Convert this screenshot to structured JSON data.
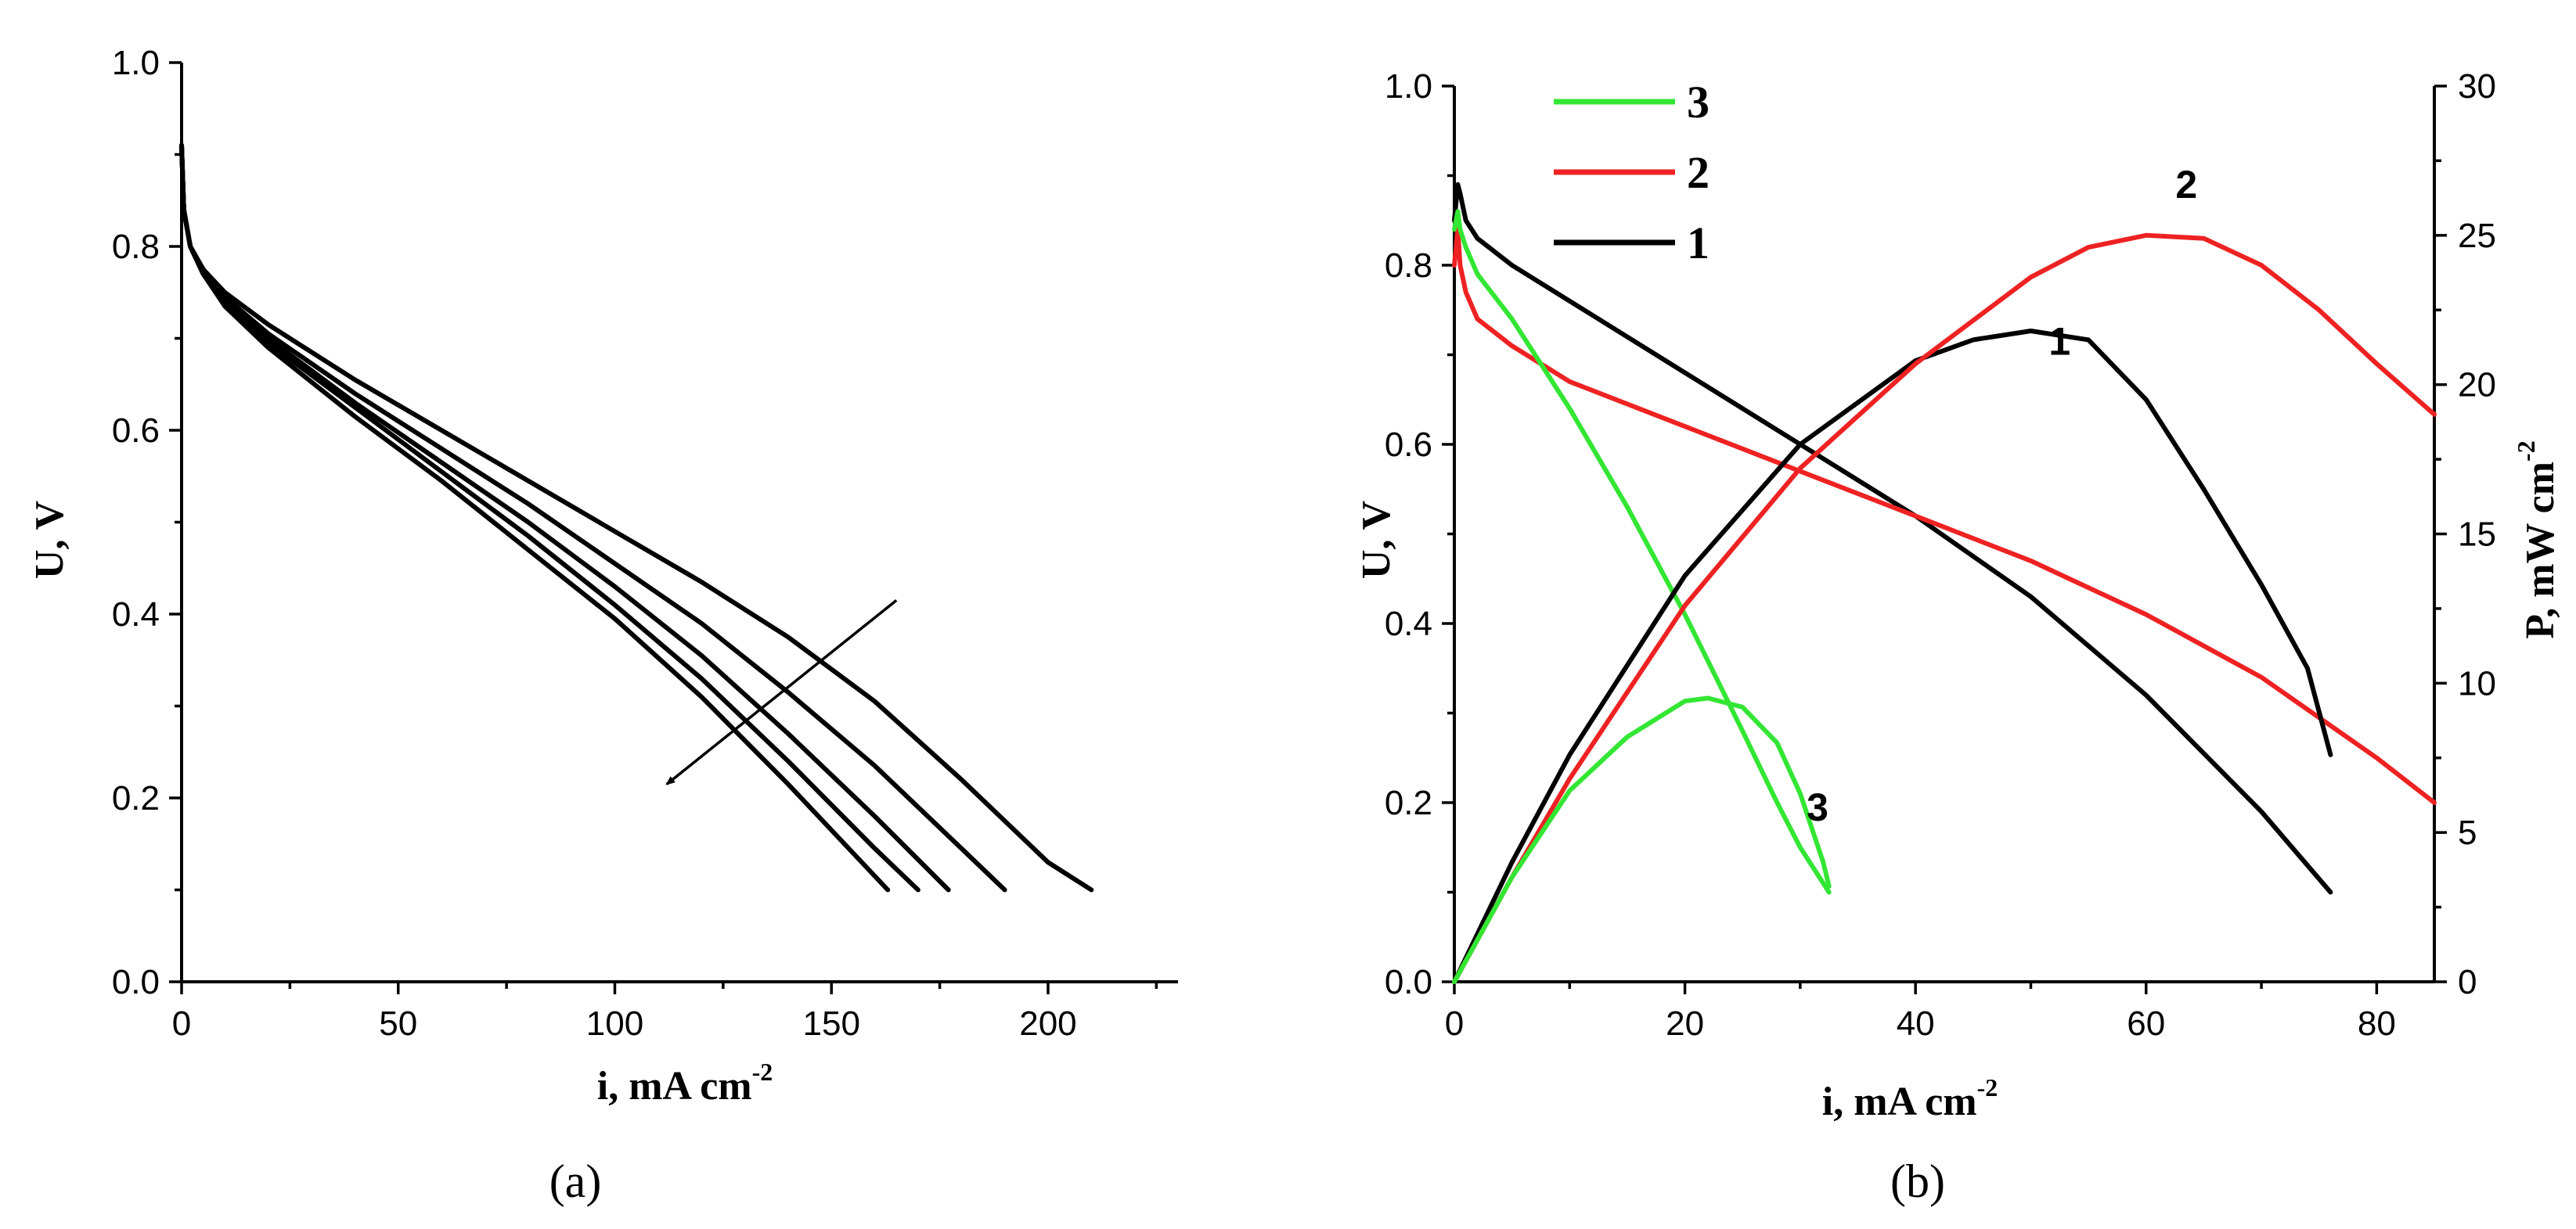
{
  "chart_data": [
    {
      "id": "a",
      "type": "line",
      "caption": "(a)",
      "xlabel": "i, mA cm",
      "xlabel_sup": "-2",
      "ylabel": "U, V",
      "xlim": [
        0,
        230
      ],
      "ylim": [
        0,
        1.0
      ],
      "xticks": [
        "0",
        "50",
        "100",
        "150",
        "200"
      ],
      "xtick_values": [
        0,
        50,
        100,
        150,
        200
      ],
      "xminor_values": [
        25,
        75,
        125,
        175,
        225
      ],
      "yticks": [
        "0.0",
        "0.2",
        "0.4",
        "0.6",
        "0.8",
        "1.0"
      ],
      "ytick_values": [
        0,
        0.2,
        0.4,
        0.6,
        0.8,
        1.0
      ],
      "yminor_values": [
        0.1,
        0.3,
        0.5,
        0.7,
        0.9
      ],
      "color": "#000000",
      "series": [
        {
          "name": "curve-1",
          "x": [
            0,
            0.5,
            2,
            5,
            10,
            20,
            40,
            60,
            80,
            100,
            120,
            140,
            160,
            180,
            200,
            210
          ],
          "y": [
            0.91,
            0.84,
            0.8,
            0.775,
            0.75,
            0.715,
            0.655,
            0.6,
            0.545,
            0.49,
            0.435,
            0.375,
            0.305,
            0.22,
            0.13,
            0.1
          ]
        },
        {
          "name": "curve-2",
          "x": [
            0,
            0.5,
            2,
            5,
            10,
            20,
            40,
            60,
            80,
            100,
            120,
            140,
            160,
            180,
            190
          ],
          "y": [
            0.91,
            0.84,
            0.8,
            0.775,
            0.745,
            0.705,
            0.64,
            0.58,
            0.52,
            0.455,
            0.39,
            0.315,
            0.235,
            0.145,
            0.1
          ]
        },
        {
          "name": "curve-3",
          "x": [
            0,
            0.5,
            2,
            5,
            10,
            20,
            40,
            60,
            80,
            100,
            120,
            140,
            160,
            177
          ],
          "y": [
            0.91,
            0.84,
            0.8,
            0.77,
            0.74,
            0.7,
            0.63,
            0.565,
            0.5,
            0.43,
            0.355,
            0.27,
            0.18,
            0.1
          ]
        },
        {
          "name": "curve-4",
          "x": [
            0,
            0.5,
            2,
            5,
            10,
            20,
            40,
            60,
            80,
            100,
            120,
            140,
            160,
            170
          ],
          "y": [
            0.91,
            0.84,
            0.8,
            0.77,
            0.74,
            0.695,
            0.625,
            0.555,
            0.485,
            0.41,
            0.33,
            0.24,
            0.145,
            0.1
          ]
        },
        {
          "name": "curve-5",
          "x": [
            0,
            0.5,
            2,
            5,
            10,
            20,
            40,
            60,
            80,
            100,
            120,
            140,
            163
          ],
          "y": [
            0.91,
            0.84,
            0.8,
            0.77,
            0.735,
            0.69,
            0.615,
            0.545,
            0.47,
            0.395,
            0.31,
            0.215,
            0.1
          ]
        }
      ],
      "arrow": {
        "from": [
          165,
          0.415
        ],
        "to": [
          112,
          0.215
        ]
      }
    },
    {
      "id": "b",
      "type": "line",
      "caption": "(b)",
      "xlabel": "i, mA cm",
      "xlabel_sup": "-2",
      "ylabel": "U, V",
      "y2label": "P, mW cm",
      "y2label_sup": "-2",
      "xlim": [
        0,
        85
      ],
      "ylim": [
        0,
        1.0
      ],
      "y2lim": [
        0,
        30
      ],
      "xticks": [
        "0",
        "20",
        "40",
        "60",
        "80"
      ],
      "xtick_values": [
        0,
        20,
        40,
        60,
        80
      ],
      "xminor_values": [
        10,
        30,
        50,
        70
      ],
      "yticks": [
        "0.0",
        "0.2",
        "0.4",
        "0.6",
        "0.8",
        "1.0"
      ],
      "ytick_values": [
        0,
        0.2,
        0.4,
        0.6,
        0.8,
        1.0
      ],
      "yminor_values": [
        0.1,
        0.3,
        0.5,
        0.7,
        0.9
      ],
      "y2ticks": [
        "0",
        "5",
        "10",
        "15",
        "20",
        "25",
        "30"
      ],
      "y2tick_values": [
        0,
        5,
        10,
        15,
        20,
        25,
        30
      ],
      "y2minor_values": [
        2.5,
        7.5,
        12.5,
        17.5,
        22.5,
        27.5
      ],
      "legend": {
        "position": "top-left",
        "entries": [
          {
            "label": "3",
            "color": "#33e633"
          },
          {
            "label": "2",
            "color": "#ee2222"
          },
          {
            "label": "1",
            "color": "#000000"
          }
        ]
      },
      "series": [
        {
          "name": "1",
          "kind": "voltage",
          "axis": "left",
          "color": "#000000",
          "x": [
            0,
            0.3,
            0.5,
            1,
            2,
            5,
            10,
            20,
            30,
            40,
            50,
            60,
            70,
            76
          ],
          "y": [
            0.85,
            0.89,
            0.88,
            0.85,
            0.83,
            0.8,
            0.76,
            0.68,
            0.6,
            0.52,
            0.43,
            0.32,
            0.19,
            0.1
          ]
        },
        {
          "name": "2",
          "kind": "voltage",
          "axis": "left",
          "color": "#ee2222",
          "x": [
            0,
            0.3,
            0.5,
            1,
            2,
            5,
            10,
            20,
            30,
            40,
            50,
            60,
            70,
            80,
            85
          ],
          "y": [
            0.8,
            0.84,
            0.8,
            0.77,
            0.74,
            0.71,
            0.67,
            0.62,
            0.57,
            0.52,
            0.47,
            0.41,
            0.34,
            0.25,
            0.2
          ]
        },
        {
          "name": "3",
          "kind": "voltage",
          "axis": "left",
          "color": "#33e633",
          "x": [
            0,
            0.3,
            0.5,
            1,
            2,
            5,
            10,
            15,
            20,
            25,
            28,
            30,
            32,
            32.5
          ],
          "y": [
            0.84,
            0.86,
            0.84,
            0.82,
            0.79,
            0.74,
            0.64,
            0.53,
            0.41,
            0.28,
            0.2,
            0.15,
            0.11,
            0.1
          ]
        },
        {
          "name": "1",
          "kind": "power",
          "axis": "right",
          "color": "#000000",
          "x": [
            0,
            5,
            10,
            20,
            30,
            40,
            45,
            50,
            55,
            60,
            65,
            70,
            74,
            76
          ],
          "y": [
            0,
            4.0,
            7.6,
            13.6,
            18.0,
            20.8,
            21.5,
            21.8,
            21.5,
            19.5,
            16.5,
            13.3,
            10.5,
            7.6
          ]
        },
        {
          "name": "2",
          "kind": "power",
          "axis": "right",
          "color": "#ee2222",
          "x": [
            0,
            5,
            10,
            20,
            30,
            40,
            50,
            55,
            60,
            65,
            70,
            75,
            80,
            85
          ],
          "y": [
            0,
            3.5,
            6.8,
            12.6,
            17.2,
            20.7,
            23.6,
            24.6,
            25.0,
            24.9,
            24.0,
            22.5,
            20.7,
            19.0
          ]
        },
        {
          "name": "3",
          "kind": "power",
          "axis": "right",
          "color": "#33e633",
          "x": [
            0,
            5,
            10,
            15,
            20,
            22,
            25,
            28,
            30,
            32,
            32.5
          ],
          "y": [
            0,
            3.5,
            6.4,
            8.2,
            9.4,
            9.5,
            9.2,
            8.0,
            6.3,
            4.0,
            3.2
          ]
        }
      ],
      "curve_labels": [
        {
          "text": "3",
          "x": 31.5,
          "y": 0.18
        },
        {
          "text": "2",
          "x": 63.5,
          "y": 0.875
        },
        {
          "text": "1",
          "x": 52.5,
          "y": 0.7
        }
      ]
    }
  ]
}
